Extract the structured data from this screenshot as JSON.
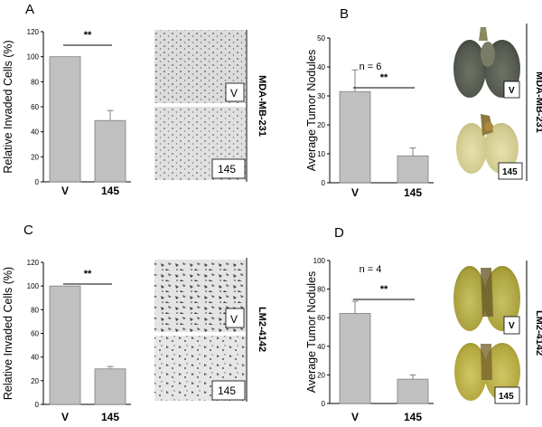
{
  "panels": {
    "A": {
      "letter": "A",
      "side_label": "MDA-MB-231",
      "image_tags": [
        "V",
        "145"
      ]
    },
    "B": {
      "letter": "B",
      "side_label": "MDA-MB-231",
      "image_tags": [
        "V",
        "145"
      ]
    },
    "C": {
      "letter": "C",
      "side_label": "LM2-4142",
      "image_tags": [
        "V",
        "145"
      ]
    },
    "D": {
      "letter": "D",
      "side_label": "LM2-4142",
      "image_tags": [
        "V",
        "145"
      ]
    }
  },
  "colors": {
    "bar": "#c0c0c0",
    "bar_edge": "#808080",
    "axis": "#000000"
  },
  "chart_data": [
    {
      "type": "bar",
      "panel": "A",
      "categories": [
        "V",
        "145"
      ],
      "values": [
        100,
        49
      ],
      "errors": [
        0,
        8
      ],
      "ylabel": "Relative Invaded Cells (%)",
      "ylim": [
        0,
        120
      ],
      "yticks": [
        0,
        20,
        40,
        60,
        80,
        100,
        120
      ],
      "significance": "**",
      "annotation": "",
      "grid": false
    },
    {
      "type": "bar",
      "panel": "B",
      "categories": [
        "V",
        "145"
      ],
      "values": [
        31.5,
        9.3
      ],
      "errors": [
        7.5,
        2.7
      ],
      "ylabel": "Average Tumor Nodules",
      "ylim": [
        0,
        50
      ],
      "yticks": [
        0,
        10,
        20,
        30,
        40,
        50
      ],
      "significance": "**",
      "annotation": "n = 6",
      "grid": false
    },
    {
      "type": "bar",
      "panel": "C",
      "categories": [
        "V",
        "145"
      ],
      "values": [
        100,
        30
      ],
      "errors": [
        0,
        2
      ],
      "ylabel": "Relative Invaded Cells (%)",
      "ylim": [
        0,
        120
      ],
      "yticks": [
        0,
        20,
        40,
        60,
        80,
        100,
        120
      ],
      "significance": "**",
      "annotation": "",
      "grid": false
    },
    {
      "type": "bar",
      "panel": "D",
      "categories": [
        "V",
        "145"
      ],
      "values": [
        63,
        17
      ],
      "errors": [
        8.5,
        3
      ],
      "ylabel": "Average Tumor Nodules",
      "ylim": [
        0,
        100
      ],
      "yticks": [
        0,
        20,
        40,
        60,
        80,
        100
      ],
      "significance": "**",
      "annotation": "n = 4",
      "grid": false
    }
  ]
}
